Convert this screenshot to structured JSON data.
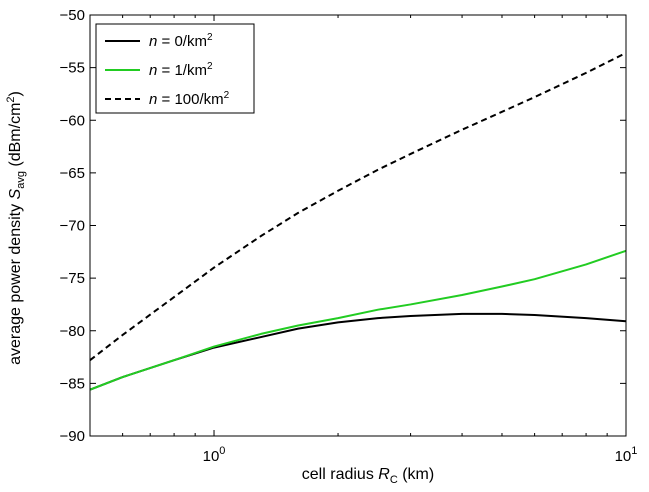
{
  "chart_data": {
    "type": "line",
    "x_scale": "log",
    "xlim": [
      0.5,
      10
    ],
    "ylim": [
      -90,
      -50
    ],
    "xlabel": {
      "prefix": "cell radius ",
      "var": "R",
      "sub": "C",
      "suffix": " (km)"
    },
    "ylabel": {
      "prefix": "average power density ",
      "var": "S",
      "sub": "avg",
      "suffix_a": " (dBm/cm",
      "sup": "2",
      "suffix_b": ")"
    },
    "x_ticks": [
      {
        "value": 1,
        "base": "10",
        "exp": "0"
      },
      {
        "value": 10,
        "base": "10",
        "exp": "1"
      }
    ],
    "y_ticks": [
      {
        "value": -90,
        "label": "−90"
      },
      {
        "value": -85,
        "label": "−85"
      },
      {
        "value": -80,
        "label": "−80"
      },
      {
        "value": -75,
        "label": "−75"
      },
      {
        "value": -70,
        "label": "−70"
      },
      {
        "value": -65,
        "label": "−65"
      },
      {
        "value": -60,
        "label": "−60"
      },
      {
        "value": -55,
        "label": "−55"
      },
      {
        "value": -50,
        "label": "−50"
      }
    ],
    "legend_position": "top-left",
    "grid": false,
    "series": [
      {
        "label": {
          "var": "n",
          "text": " = 0/km",
          "sup": "2"
        },
        "color": "#000000",
        "dash": "solid",
        "x": [
          0.5,
          0.6,
          0.8,
          1.0,
          1.3,
          1.6,
          2.0,
          2.5,
          3.0,
          4.0,
          5.0,
          6.0,
          8.0,
          10.0
        ],
        "y": [
          -85.6,
          -84.4,
          -82.8,
          -81.6,
          -80.6,
          -79.8,
          -79.2,
          -78.8,
          -78.6,
          -78.4,
          -78.4,
          -78.5,
          -78.8,
          -79.1
        ]
      },
      {
        "label": {
          "var": "n",
          "text": " = 1/km",
          "sup": "2"
        },
        "color": "#22cc22",
        "dash": "solid",
        "x": [
          0.5,
          0.6,
          0.8,
          1.0,
          1.3,
          1.6,
          2.0,
          2.5,
          3.0,
          4.0,
          5.0,
          6.0,
          8.0,
          10.0
        ],
        "y": [
          -85.6,
          -84.4,
          -82.8,
          -81.5,
          -80.3,
          -79.5,
          -78.8,
          -78.0,
          -77.5,
          -76.6,
          -75.8,
          -75.1,
          -73.7,
          -72.4
        ]
      },
      {
        "label": {
          "var": "n",
          "text": " = 100/km",
          "sup": "2"
        },
        "color": "#000000",
        "dash": "dashed",
        "x": [
          0.5,
          0.6,
          0.8,
          1.0,
          1.3,
          1.6,
          2.0,
          2.5,
          3.0,
          4.0,
          5.0,
          6.0,
          8.0,
          10.0
        ],
        "y": [
          -82.8,
          -80.4,
          -76.8,
          -74.0,
          -71.0,
          -68.8,
          -66.7,
          -64.7,
          -63.2,
          -60.9,
          -59.2,
          -57.8,
          -55.5,
          -53.6
        ]
      }
    ]
  }
}
